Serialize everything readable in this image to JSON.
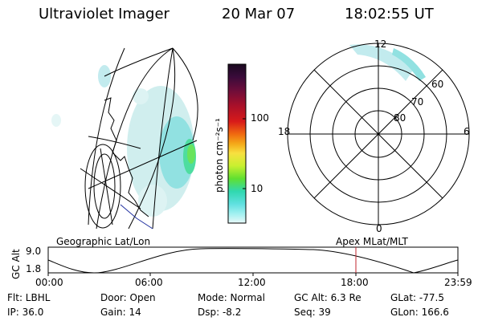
{
  "header": {
    "instrument": "Ultraviolet Imager",
    "date": "20 Mar 07",
    "time": "18:02:55 UT"
  },
  "colorbar": {
    "unit_label": "photon cm⁻²s⁻¹",
    "ticks": [
      "100",
      "10"
    ],
    "colors": [
      "#1a0a20",
      "#3a0b3a",
      "#6a0d3a",
      "#a8102a",
      "#d81a1a",
      "#f06a10",
      "#f4a818",
      "#f8e040",
      "#c8f030",
      "#60e030",
      "#30d8b0",
      "#60e0e0",
      "#a0f0f0",
      "#e8f8f8"
    ]
  },
  "polar_plot": {
    "labels": {
      "top": "12",
      "bottom": "0",
      "left": "18",
      "right": "6",
      "lat_60": "60",
      "lat_70": "70",
      "lat_80": "80"
    }
  },
  "orbit": {
    "left_label": "Geographic Lat/Lon",
    "right_label": "Apex MLat/MLT",
    "yaxis_label": "GC Alt",
    "y_ticks": [
      "9.0",
      "1.8"
    ],
    "x_ticks": [
      "00:00",
      "06:00",
      "12:00",
      "18:00",
      "23:59"
    ],
    "marker_color": "#c0262e"
  },
  "info": {
    "filter": "Flt: LBHL",
    "ip": "IP: 36.0",
    "door": "Door: Open",
    "gain": "Gain: 14",
    "mode": "Mode: Normal",
    "dsp": "Dsp:    -8.2",
    "gc_alt": "GC Alt: 6.3 Re",
    "seq": "Seq: 39",
    "glat": "GLat: -77.5",
    "glon": "GLon: 166.6"
  }
}
